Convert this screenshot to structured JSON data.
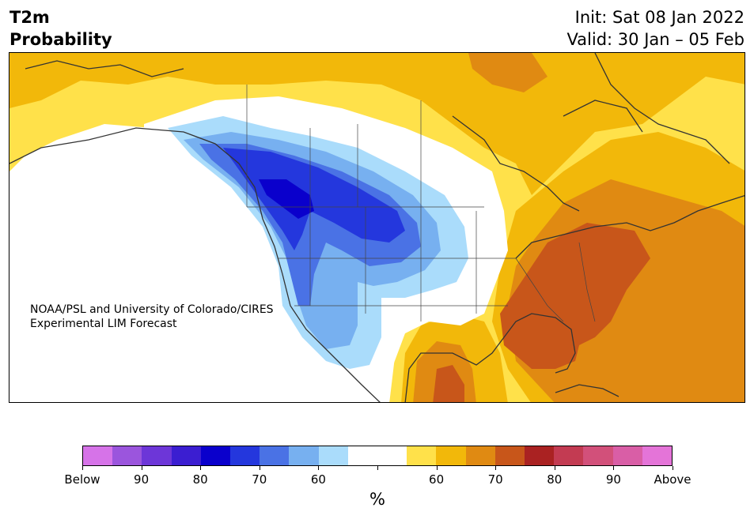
{
  "header": {
    "title_line1": "T2m",
    "title_line2": "Probability",
    "init": "Init: Sat 08 Jan 2022",
    "valid": "Valid: 30 Jan – 05 Feb"
  },
  "map": {
    "credit_line1": "NOAA/PSL and University of Colorado/CIRES",
    "credit_line2": "Experimental LIM Forecast"
  },
  "colorbar": {
    "colors": [
      "#d673e8",
      "#9b55dd",
      "#6d36d8",
      "#3b1ed1",
      "#0a00cc",
      "#2437dd",
      "#4a72e5",
      "#77b0f0",
      "#aadcfb",
      "#ffffff",
      "#ffffff",
      "#ffe14a",
      "#f2b80a",
      "#e08a12",
      "#c8561a",
      "#aa2222",
      "#c33b52",
      "#d2507a",
      "#d95ea6",
      "#e474d8"
    ],
    "tick_labels": [
      "Below",
      "90",
      "80",
      "70",
      "60",
      "",
      "60",
      "70",
      "80",
      "90",
      "Above"
    ],
    "unit": "%"
  }
}
